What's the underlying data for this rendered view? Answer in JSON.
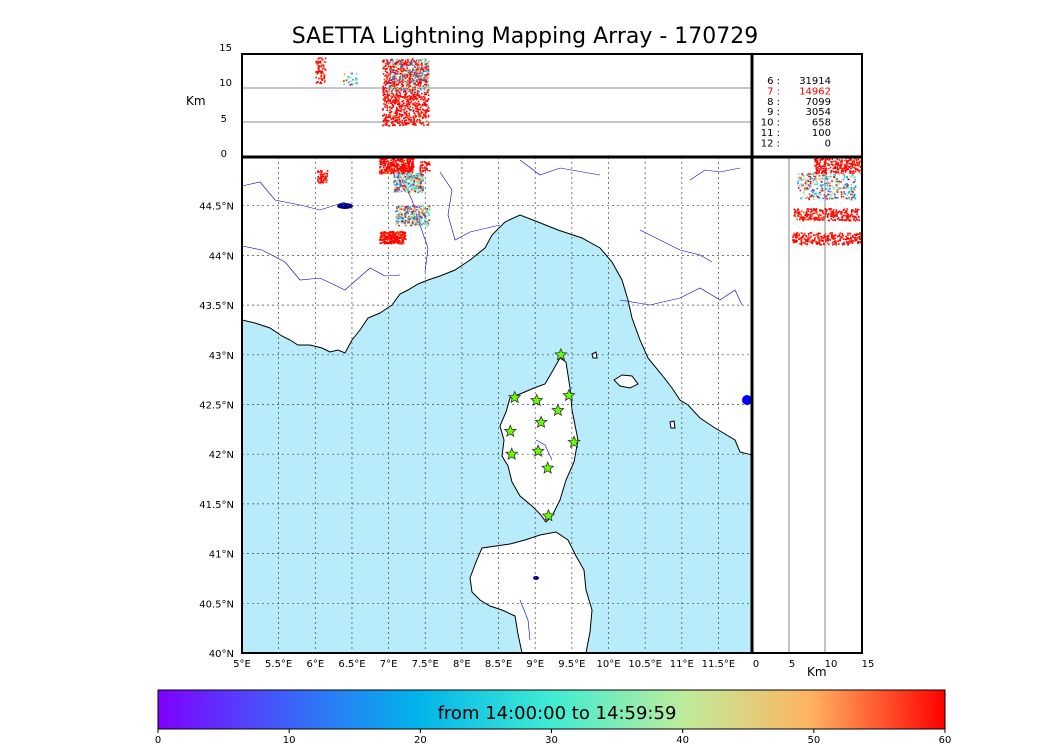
{
  "title": "SAETTA Lightning Mapping Array - 170729",
  "top_panel": {
    "ylabel": "Km",
    "yticks": [
      "15",
      "10",
      "5",
      "0"
    ]
  },
  "side_panel": {
    "xlabel": "Km",
    "xticks": [
      "0",
      "5",
      "10",
      "15"
    ]
  },
  "map": {
    "lat_ticks": [
      "44.5°N",
      "44°N",
      "43.5°N",
      "43°N",
      "42.5°N",
      "42°N",
      "41.5°N",
      "41°N",
      "40.5°N",
      "40°N"
    ],
    "lon_ticks": [
      "5°E",
      "5.5°E",
      "6°E",
      "6.5°E",
      "7°E",
      "7.5°E",
      "8°E",
      "8.5°E",
      "9°E",
      "9.5°E",
      "10°E",
      "10.5°E",
      "11°E",
      "11.5°E"
    ],
    "sea_color": "#b9ecfa",
    "land_color": "#ffffff",
    "river_color": "#0000cc",
    "station_color": "#66ff00",
    "stations": [
      {
        "lon": 9.35,
        "lat": 43.0
      },
      {
        "lon": 8.72,
        "lat": 42.57
      },
      {
        "lon": 9.02,
        "lat": 42.54
      },
      {
        "lon": 9.46,
        "lat": 42.59
      },
      {
        "lon": 9.31,
        "lat": 42.44
      },
      {
        "lon": 9.08,
        "lat": 42.32
      },
      {
        "lon": 8.66,
        "lat": 42.23
      },
      {
        "lon": 9.53,
        "lat": 42.12
      },
      {
        "lon": 9.04,
        "lat": 42.03
      },
      {
        "lon": 8.68,
        "lat": 42.0
      },
      {
        "lon": 9.17,
        "lat": 41.86
      },
      {
        "lon": 9.18,
        "lat": 41.38
      }
    ]
  },
  "stats": [
    {
      "key": "6",
      "value": "31914",
      "color": "#000000"
    },
    {
      "key": "7",
      "value": "14962",
      "color": "#ff0000"
    },
    {
      "key": "8",
      "value": "7099",
      "color": "#000000"
    },
    {
      "key": "9",
      "value": "3054",
      "color": "#000000"
    },
    {
      "key": "10",
      "value": "658",
      "color": "#000000"
    },
    {
      "key": "11",
      "value": "100",
      "color": "#000000"
    },
    {
      "key": "12",
      "value": "0",
      "color": "#000000"
    }
  ],
  "colorbar": {
    "label": "from 14:00:00 to 14:59:59",
    "ticks": [
      "0",
      "10",
      "20",
      "30",
      "40",
      "50",
      "60"
    ],
    "min": 0,
    "max": 60
  }
}
